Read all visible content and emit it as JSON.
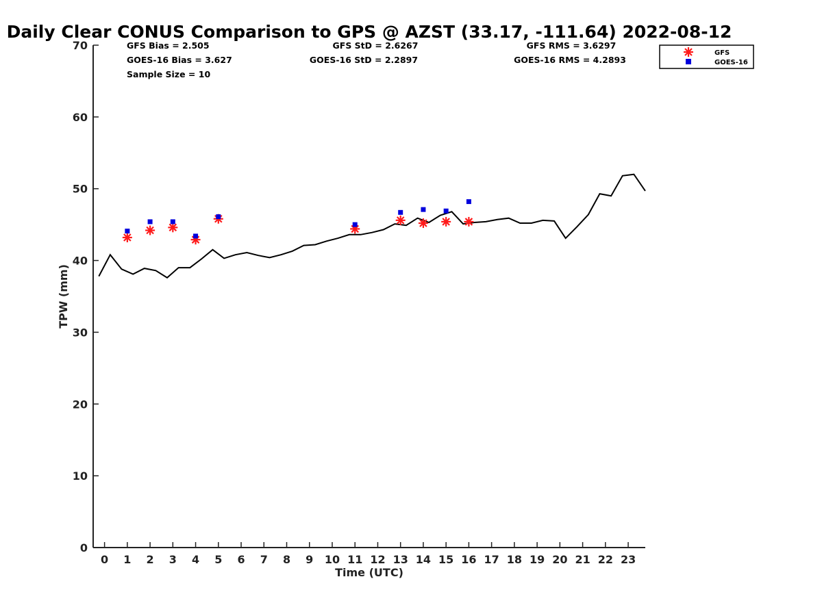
{
  "chart_data": {
    "type": "scatter",
    "title": "Daily Clear CONUS Comparison to GPS @ AZST (33.17, -111.64) 2022-08-12",
    "xlabel": "Time (UTC)",
    "ylabel": "TPW (mm)",
    "xlim": [
      -0.5,
      23.75
    ],
    "ylim": [
      0,
      70
    ],
    "x_ticks": [
      0,
      1,
      2,
      3,
      4,
      5,
      6,
      7,
      8,
      9,
      10,
      11,
      12,
      13,
      14,
      15,
      16,
      17,
      18,
      19,
      20,
      21,
      22,
      23
    ],
    "y_ticks": [
      0,
      10,
      20,
      30,
      40,
      50,
      60,
      70
    ],
    "grid": false,
    "legend": "top-right",
    "stats": {
      "gfs_bias": "GFS Bias = 2.505",
      "goes_bias": "GOES-16 Bias = 3.627",
      "sample_size": "Sample Size = 10",
      "gfs_std": "GFS StD = 2.6267",
      "goes_std": "GOES-16 StD = 2.2897",
      "gfs_rms": "GFS RMS = 3.6297",
      "goes_rms": "GOES-16 RMS = 4.2893"
    },
    "series": [
      {
        "kind": "line",
        "color": "#000000",
        "x": [
          -0.25,
          0.25,
          0.75,
          1.25,
          1.75,
          2.25,
          2.75,
          3.25,
          3.75,
          4.25,
          4.75,
          5.25,
          5.75,
          6.25,
          6.75,
          7.25,
          7.75,
          8.25,
          8.75,
          9.25,
          9.75,
          10.25,
          10.75,
          11.25,
          11.75,
          12.25,
          12.75,
          13.25,
          13.75,
          14.25,
          14.75,
          15.25,
          15.75,
          16.25,
          16.75,
          17.25,
          17.75,
          18.25,
          18.75,
          19.25,
          19.75,
          20.25,
          20.75,
          21.25,
          21.75,
          22.25,
          22.75,
          23.25,
          23.75
        ],
        "y": [
          37.8,
          40.8,
          38.8,
          38.1,
          38.9,
          38.6,
          37.6,
          39.0,
          39.0,
          40.2,
          41.5,
          40.3,
          40.8,
          41.1,
          40.7,
          40.4,
          40.8,
          41.3,
          42.1,
          42.2,
          42.7,
          43.1,
          43.6,
          43.6,
          43.9,
          44.3,
          45.1,
          44.9,
          45.9,
          45.3,
          46.3,
          46.8,
          45.1,
          45.3,
          45.4,
          45.7,
          45.9,
          45.2,
          45.2,
          45.6,
          45.5,
          43.1,
          44.7,
          46.4,
          49.3,
          49.0,
          51.8,
          52.0,
          49.7
        ]
      },
      {
        "name": "GFS",
        "kind": "scatter",
        "marker": "asterisk",
        "color": "#ff1a1a",
        "x": [
          1,
          2,
          3,
          4,
          5,
          11,
          13,
          14,
          15,
          16
        ],
        "y": [
          43.2,
          44.2,
          44.6,
          42.9,
          45.8,
          44.4,
          45.6,
          45.2,
          45.4,
          45.4
        ]
      },
      {
        "name": "GOES-16",
        "kind": "scatter",
        "marker": "square",
        "color": "#0000dd",
        "x": [
          1,
          2,
          3,
          4,
          5,
          11,
          13,
          14,
          15,
          16
        ],
        "y": [
          44.1,
          45.4,
          45.4,
          43.4,
          46.1,
          45.0,
          46.7,
          47.1,
          46.9,
          48.2
        ]
      }
    ]
  }
}
